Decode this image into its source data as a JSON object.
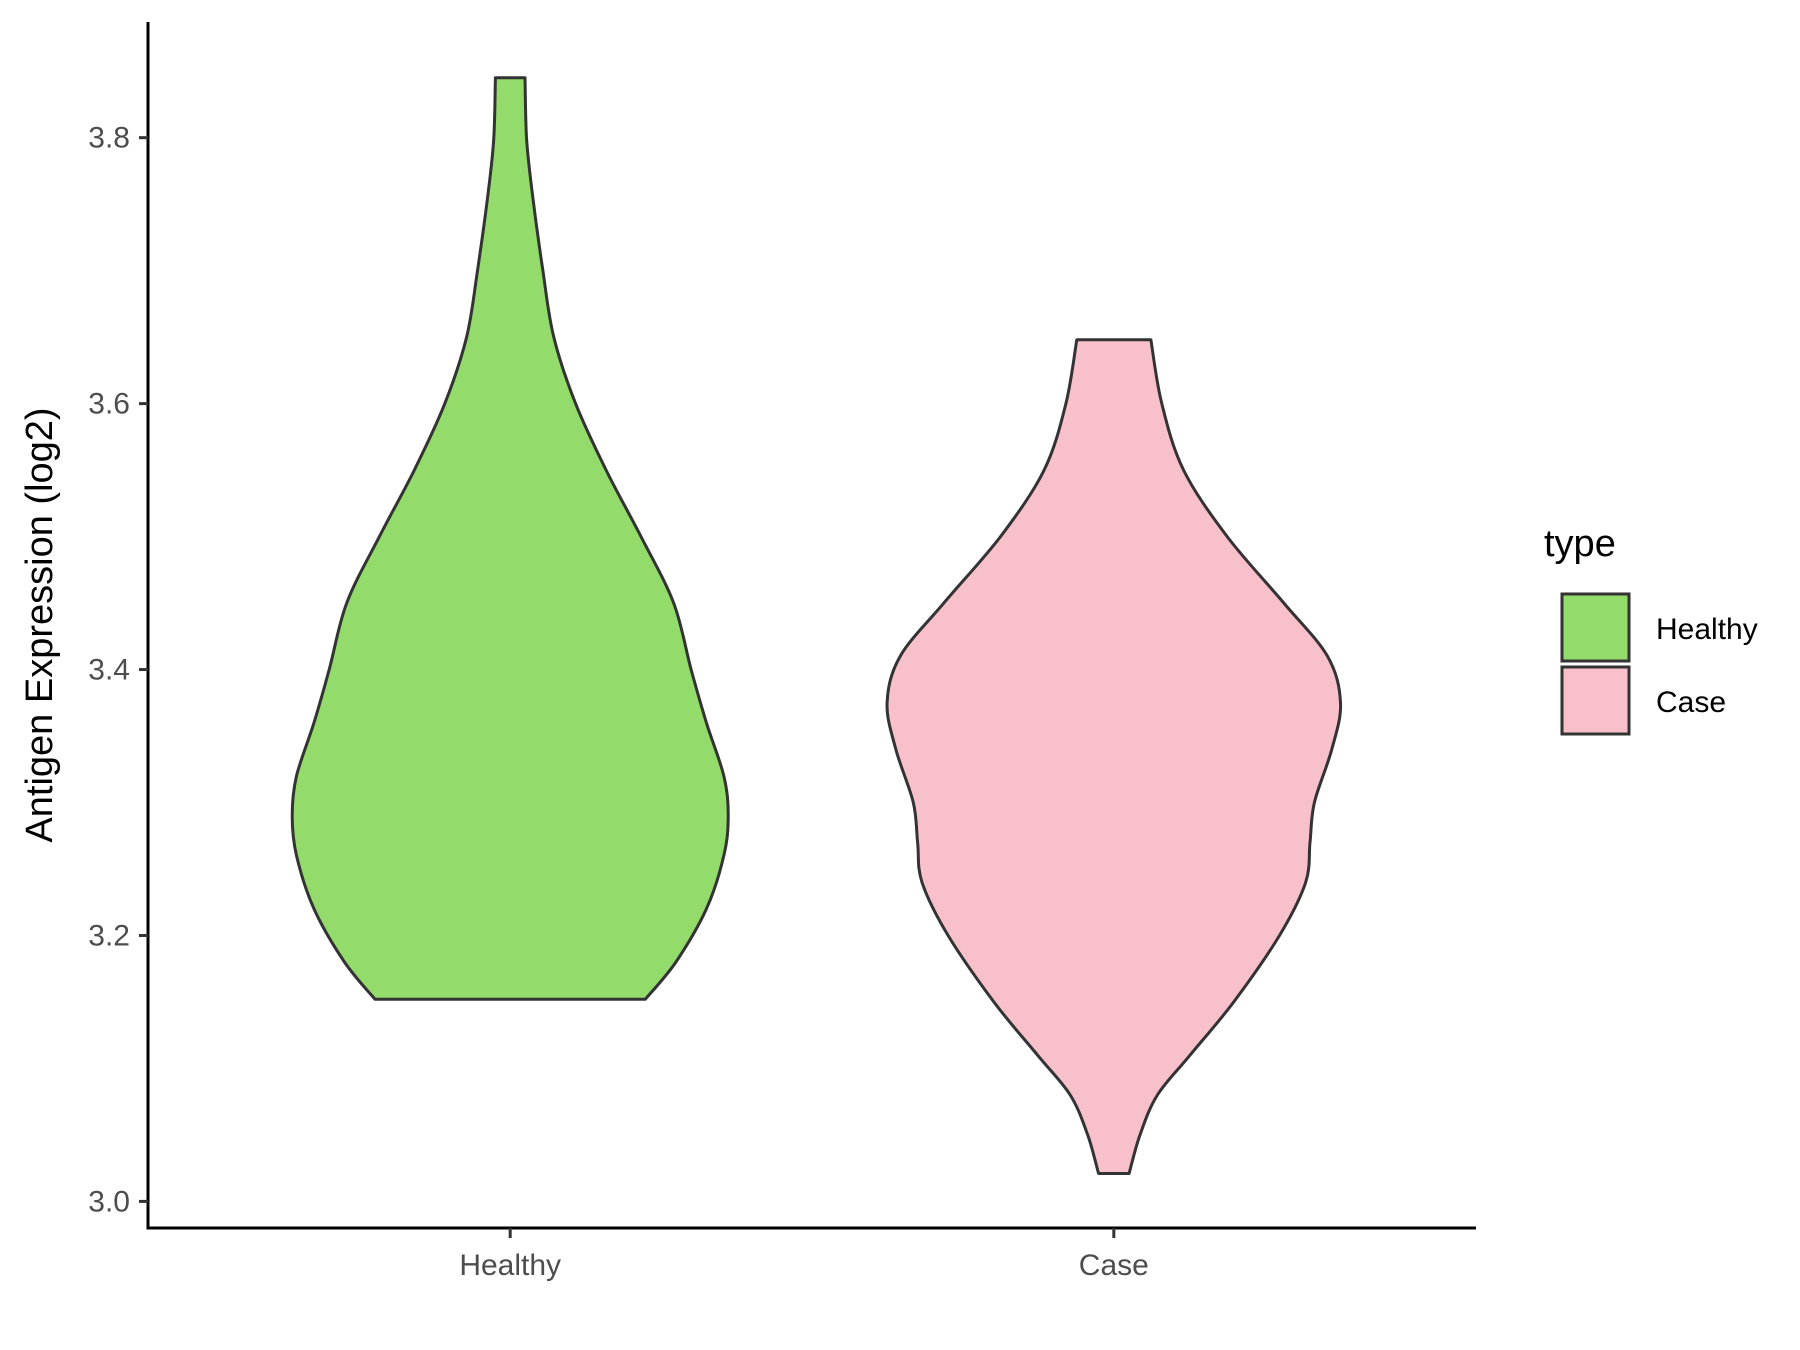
{
  "chart_data": {
    "type": "violin",
    "title": "",
    "xlabel": "",
    "ylabel": "Antigen Expression (log2)",
    "categories": [
      "Healthy",
      "Case"
    ],
    "ylim": [
      2.98,
      3.887
    ],
    "yticks": [
      3.0,
      3.2,
      3.4,
      3.6,
      3.8
    ],
    "ytick_labels": [
      "3.0",
      "3.2",
      "3.4",
      "3.6",
      "3.8"
    ],
    "grid": false,
    "legend": {
      "title": "type",
      "placement": "right",
      "entries": [
        "Healthy",
        "Case"
      ]
    },
    "series": [
      {
        "name": "Healthy",
        "color": "#93db6b",
        "y_min": 3.152,
        "y_max": 3.845,
        "density_profile": [
          {
            "y": 3.152,
            "w": 0.62
          },
          {
            "y": 3.18,
            "w": 0.76
          },
          {
            "y": 3.22,
            "w": 0.9
          },
          {
            "y": 3.26,
            "w": 0.98
          },
          {
            "y": 3.29,
            "w": 1.0
          },
          {
            "y": 3.32,
            "w": 0.98
          },
          {
            "y": 3.36,
            "w": 0.9
          },
          {
            "y": 3.4,
            "w": 0.83
          },
          {
            "y": 3.45,
            "w": 0.75
          },
          {
            "y": 3.5,
            "w": 0.6
          },
          {
            "y": 3.55,
            "w": 0.44
          },
          {
            "y": 3.6,
            "w": 0.3
          },
          {
            "y": 3.65,
            "w": 0.2
          },
          {
            "y": 3.7,
            "w": 0.15
          },
          {
            "y": 3.76,
            "w": 0.1
          },
          {
            "y": 3.8,
            "w": 0.075
          },
          {
            "y": 3.845,
            "w": 0.068
          }
        ]
      },
      {
        "name": "Case",
        "color": "#f8c0cb",
        "y_min": 3.021,
        "y_max": 3.648,
        "density_profile": [
          {
            "y": 3.021,
            "w": 0.07
          },
          {
            "y": 3.05,
            "w": 0.12
          },
          {
            "y": 3.08,
            "w": 0.2
          },
          {
            "y": 3.11,
            "w": 0.35
          },
          {
            "y": 3.15,
            "w": 0.55
          },
          {
            "y": 3.2,
            "w": 0.76
          },
          {
            "y": 3.24,
            "w": 0.88
          },
          {
            "y": 3.27,
            "w": 0.9
          },
          {
            "y": 3.3,
            "w": 0.92
          },
          {
            "y": 3.34,
            "w": 1.0
          },
          {
            "y": 3.375,
            "w": 1.04
          },
          {
            "y": 3.41,
            "w": 0.98
          },
          {
            "y": 3.45,
            "w": 0.78
          },
          {
            "y": 3.5,
            "w": 0.52
          },
          {
            "y": 3.55,
            "w": 0.32
          },
          {
            "y": 3.6,
            "w": 0.22
          },
          {
            "y": 3.648,
            "w": 0.17
          }
        ]
      }
    ]
  }
}
